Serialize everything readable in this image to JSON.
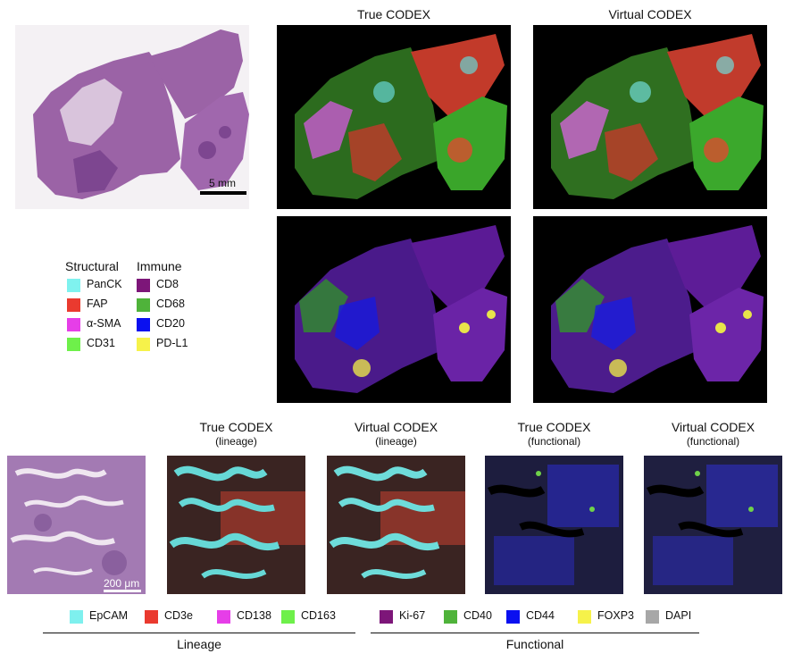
{
  "top_titles": {
    "true": "True CODEX",
    "virtual": "Virtual CODEX"
  },
  "he_scale_label": "5 mm",
  "he_small_scale_label": "200 μm",
  "structural_legend": {
    "title": "Structural",
    "items": [
      {
        "label": "PanCK",
        "color": "#7ff2ef"
      },
      {
        "label": "FAP",
        "color": "#ea3a2f"
      },
      {
        "label": "α-SMA",
        "color": "#e63ee8"
      },
      {
        "label": "CD31",
        "color": "#6ef04a"
      }
    ]
  },
  "immune_legend": {
    "title": "Immune",
    "items": [
      {
        "label": "CD8",
        "color": "#7d1679"
      },
      {
        "label": "CD68",
        "color": "#4fb33a"
      },
      {
        "label": "CD20",
        "color": "#0a10f0"
      },
      {
        "label": "PD-L1",
        "color": "#f6f24a"
      }
    ]
  },
  "bottom_titles": [
    {
      "main": "True CODEX",
      "sub": "(lineage)"
    },
    {
      "main": "Virtual CODEX",
      "sub": "(lineage)"
    },
    {
      "main": "True CODEX",
      "sub": "(functional)"
    },
    {
      "main": "Virtual CODEX",
      "sub": "(functional)"
    }
  ],
  "lineage_legend": {
    "group": "Lineage",
    "items": [
      {
        "label": "EpCAM",
        "color": "#7ef0ee"
      },
      {
        "label": "CD3e",
        "color": "#ea3a2f"
      },
      {
        "label": "CD138",
        "color": "#e63ee8"
      },
      {
        "label": "CD163",
        "color": "#6ef04a"
      }
    ]
  },
  "functional_legend": {
    "group": "Functional",
    "items": [
      {
        "label": "Ki-67",
        "color": "#7d1679"
      },
      {
        "label": "CD40",
        "color": "#4fb33a"
      },
      {
        "label": "CD44",
        "color": "#0a10f0"
      },
      {
        "label": "FOXP3",
        "color": "#f6f24a"
      },
      {
        "label": "DAPI",
        "color": "#a7a7a7"
      }
    ]
  }
}
